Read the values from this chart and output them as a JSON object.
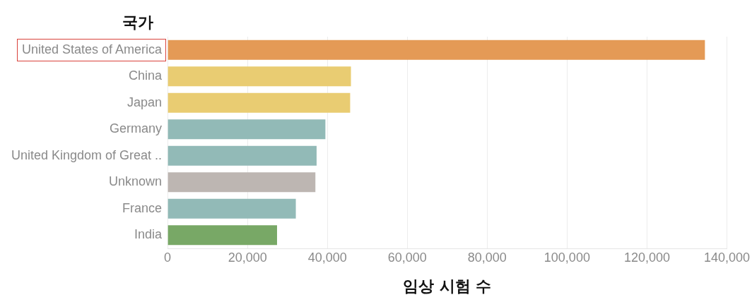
{
  "chart_data": {
    "type": "bar",
    "orientation": "horizontal",
    "ylabel": "국가",
    "xlabel": "임상 시험 수",
    "categories": [
      "United States of America",
      "China",
      "Japan",
      "Germany",
      "United Kingdom of Great ..",
      "Unknown",
      "France",
      "India"
    ],
    "values": [
      134500,
      45900,
      45700,
      39500,
      37300,
      37000,
      32100,
      27400
    ],
    "colors": [
      "#e49a56",
      "#e9cc72",
      "#e9cc72",
      "#92bab7",
      "#92bab7",
      "#bdb6b2",
      "#92bab7",
      "#78a866"
    ],
    "xlim": [
      0,
      140000
    ],
    "xticks": [
      0,
      {
        "value": 20000,
        "label": "20,000"
      },
      {
        "value": 40000,
        "label": "40,000"
      },
      {
        "value": 60000,
        "label": "60,000"
      },
      {
        "value": 80000,
        "label": "80,000"
      },
      {
        "value": 100000,
        "label": "100,000"
      },
      {
        "value": 120000,
        "label": "120,000"
      },
      {
        "value": 140000,
        "label": "140,000"
      }
    ],
    "grid": "x",
    "legend": false
  }
}
